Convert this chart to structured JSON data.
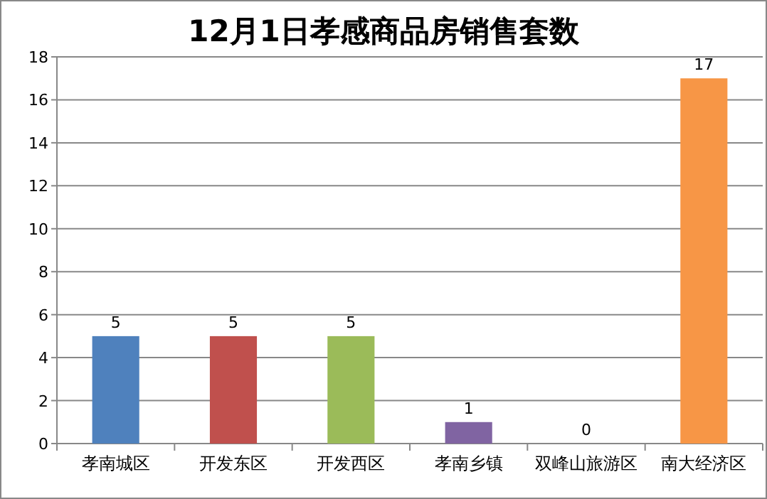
{
  "chart_data": {
    "type": "bar",
    "title": "12月1日孝感商品房销售套数",
    "categories": [
      "孝南城区",
      "开发东区",
      "开发西区",
      "孝南乡镇",
      "双峰山旅游区",
      "南大经济区"
    ],
    "values": [
      5,
      5,
      5,
      1,
      0,
      17
    ],
    "colors": [
      "#4f81bd",
      "#c0504d",
      "#9bbb59",
      "#8064a2",
      "#4bacc6",
      "#f79646"
    ],
    "ylim": [
      0,
      18
    ],
    "yticks": [
      0,
      2,
      4,
      6,
      8,
      10,
      12,
      14,
      16,
      18
    ],
    "grid": "y",
    "data_labels": true
  }
}
